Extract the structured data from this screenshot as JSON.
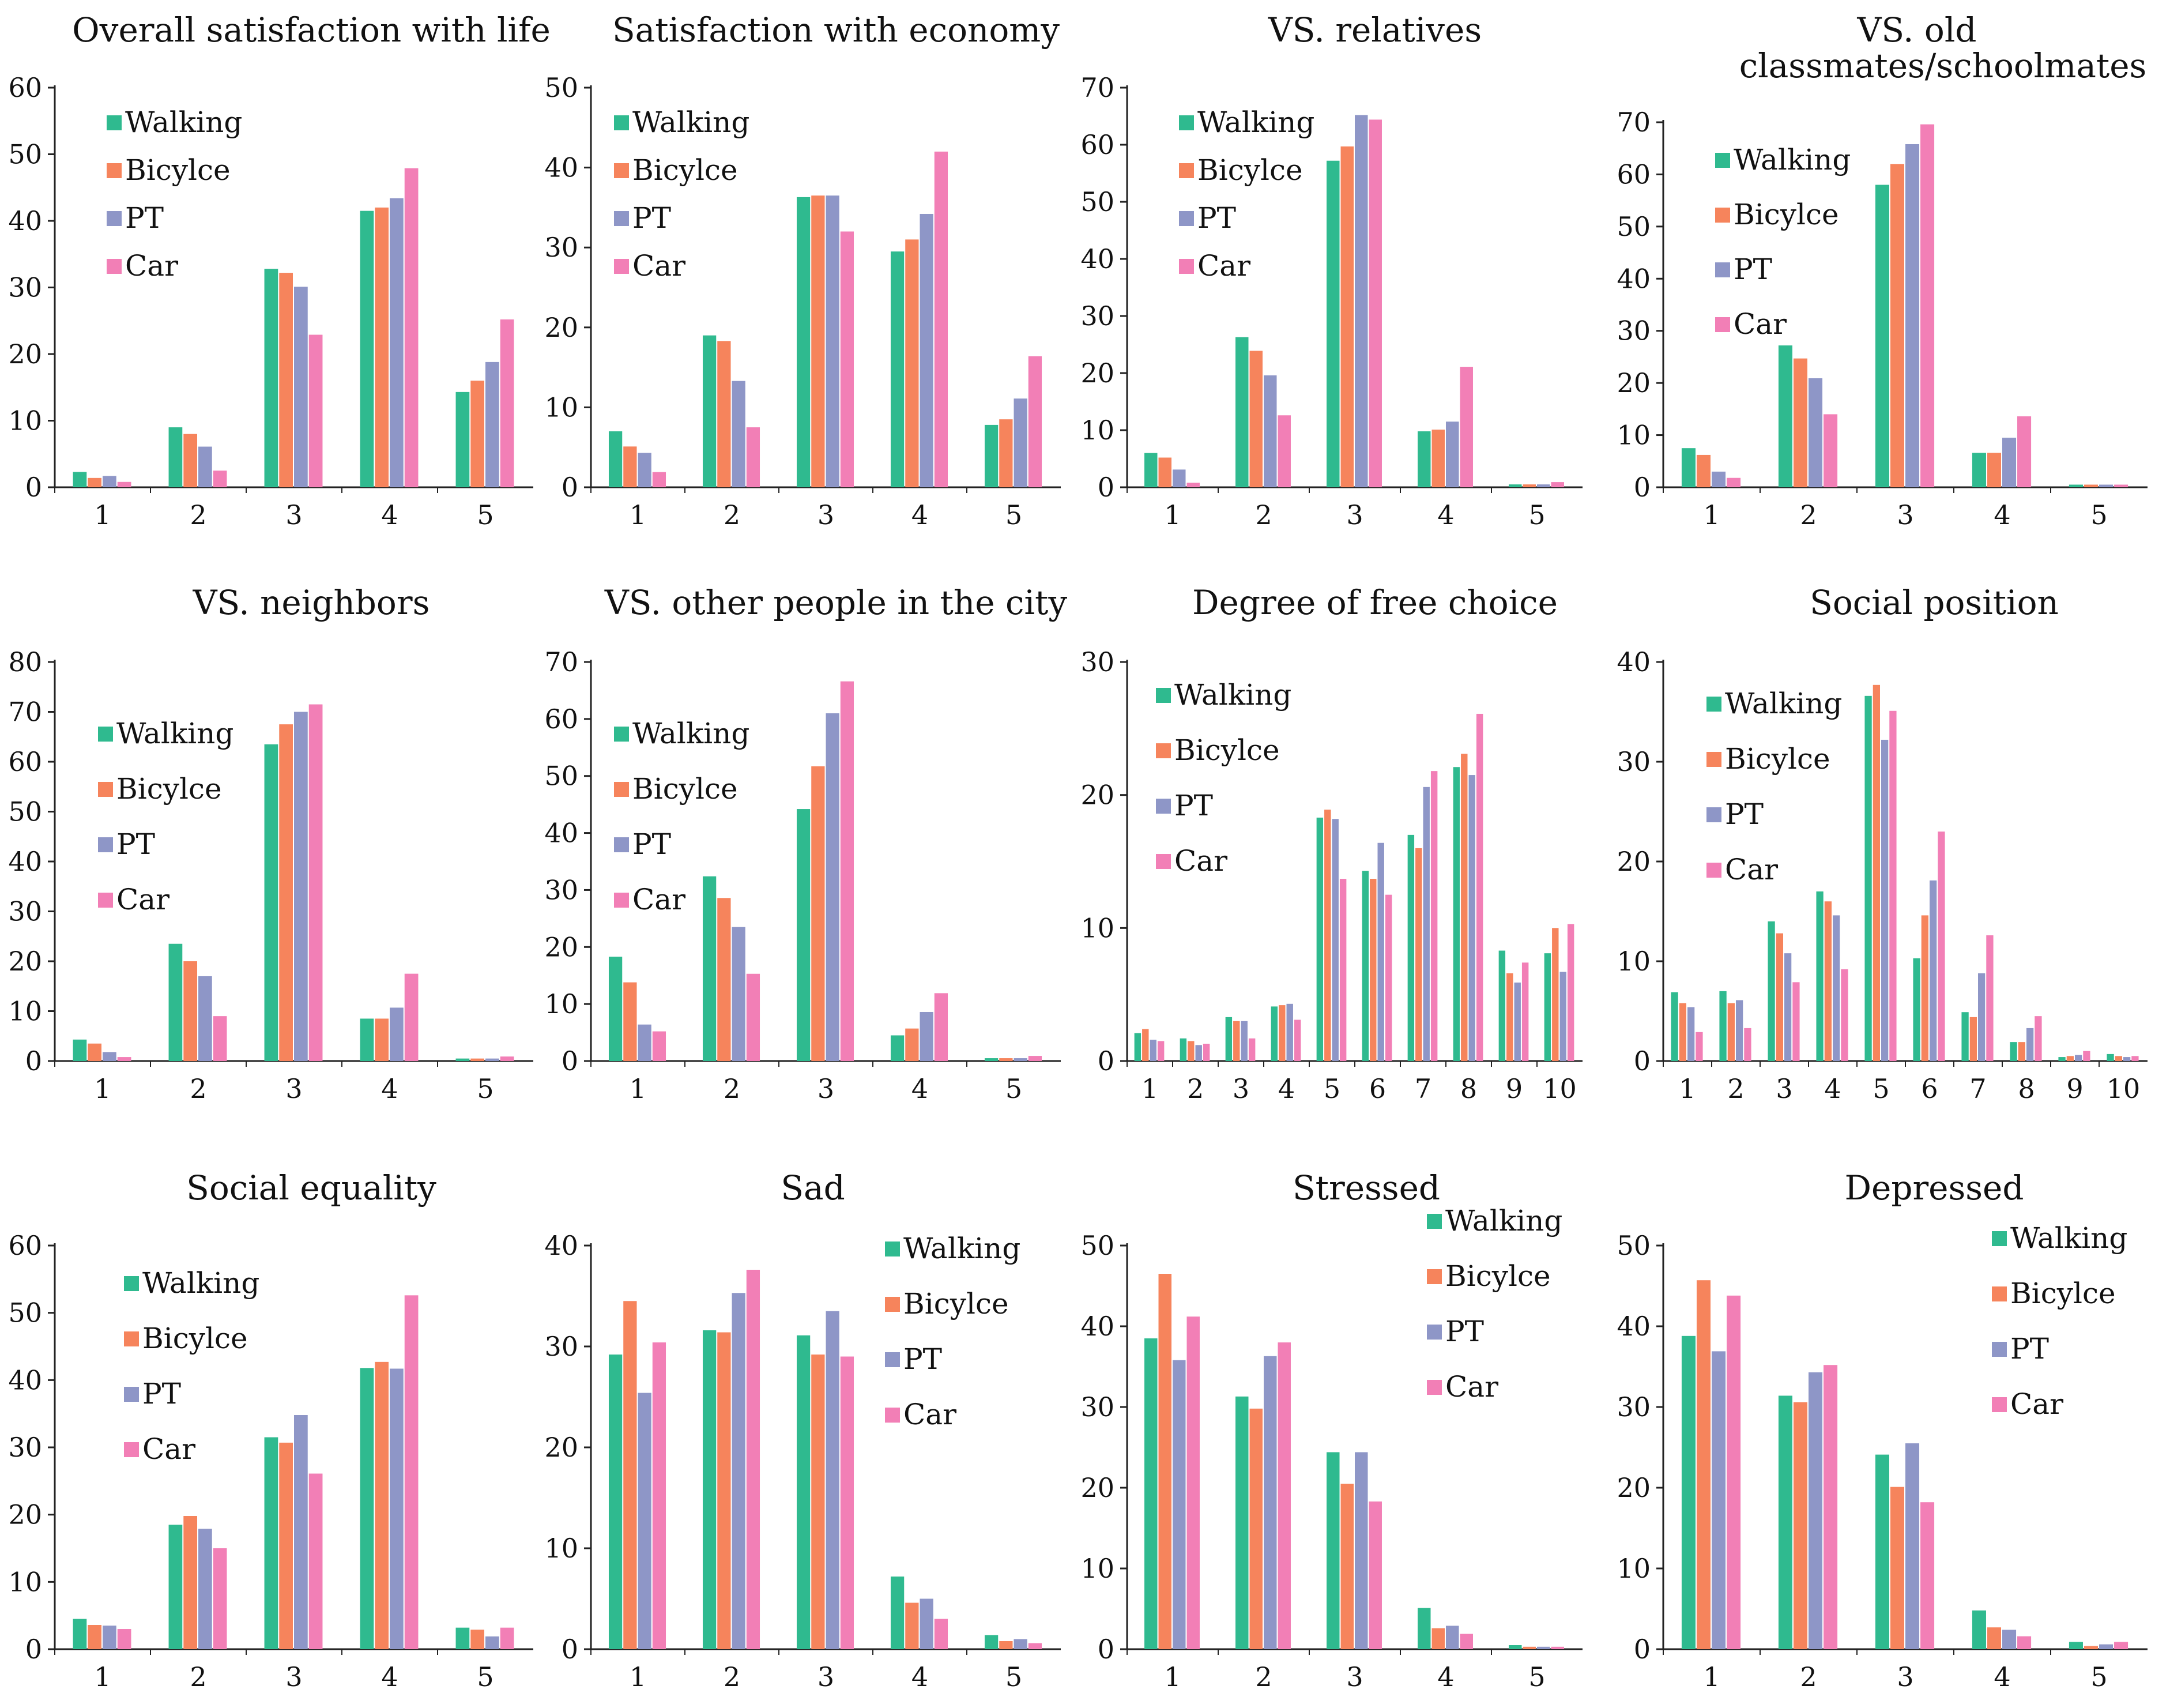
{
  "series_meta": [
    {
      "name": "Walking",
      "color": "#2fba8f"
    },
    {
      "name": "Bicylce",
      "color": "#f6845c"
    },
    {
      "name": "PT",
      "color": "#8e96c7"
    },
    {
      "name": "Car",
      "color": "#f27fb6"
    }
  ],
  "chart_data": [
    {
      "type": "bar",
      "title": "Overall satisfaction with life",
      "categories": [
        "1",
        "2",
        "3",
        "4",
        "5"
      ],
      "ylim": [
        0,
        60
      ],
      "yticks": [
        0,
        10,
        20,
        30,
        40,
        50,
        60
      ],
      "legend": "top-left",
      "series": [
        {
          "name": "Walking",
          "values": [
            2.3,
            9.0,
            32.8,
            41.5,
            14.3
          ]
        },
        {
          "name": "Bicycle",
          "values": [
            1.4,
            8.0,
            32.2,
            42.0,
            16.0
          ]
        },
        {
          "name": "PT",
          "values": [
            1.7,
            6.1,
            30.1,
            43.4,
            18.8
          ]
        },
        {
          "name": "Car",
          "values": [
            0.8,
            2.5,
            22.9,
            47.9,
            25.2
          ]
        }
      ]
    },
    {
      "type": "bar",
      "title": "Satisfaction with economy",
      "categories": [
        "1",
        "2",
        "3",
        "4",
        "5"
      ],
      "ylim": [
        0,
        50
      ],
      "yticks": [
        0,
        10,
        20,
        30,
        40,
        50
      ],
      "legend": "top-left",
      "series": [
        {
          "name": "Walking",
          "values": [
            7.0,
            19.0,
            36.3,
            29.5,
            7.8
          ]
        },
        {
          "name": "Bicycle",
          "values": [
            5.1,
            18.3,
            36.5,
            31.0,
            8.5
          ]
        },
        {
          "name": "PT",
          "values": [
            4.3,
            13.3,
            36.5,
            34.2,
            11.1
          ]
        },
        {
          "name": "Car",
          "values": [
            1.9,
            7.5,
            32.0,
            42.0,
            16.4
          ]
        }
      ]
    },
    {
      "type": "bar",
      "title": "VS. relatives",
      "categories": [
        "1",
        "2",
        "3",
        "4",
        "5"
      ],
      "ylim": [
        0,
        70
      ],
      "yticks": [
        0,
        10,
        20,
        30,
        40,
        50,
        60,
        70
      ],
      "legend": "top-left",
      "series": [
        {
          "name": "Walking",
          "values": [
            6.0,
            26.3,
            57.2,
            9.8,
            0.5
          ]
        },
        {
          "name": "Bicycle",
          "values": [
            5.2,
            23.9,
            59.7,
            10.1,
            0.5
          ]
        },
        {
          "name": "PT",
          "values": [
            3.1,
            19.6,
            65.2,
            11.5,
            0.5
          ]
        },
        {
          "name": "Car",
          "values": [
            0.8,
            12.6,
            64.4,
            21.1,
            0.9
          ]
        }
      ]
    },
    {
      "type": "bar",
      "title": "VS. old classmates/schoolmates",
      "title_lines": [
        "VS. old",
        "classmates/schoolmates"
      ],
      "categories": [
        "1",
        "2",
        "3",
        "4",
        "5"
      ],
      "ylim": [
        0,
        70
      ],
      "yticks": [
        0,
        10,
        20,
        30,
        40,
        50,
        60,
        70
      ],
      "legend": "top-left",
      "series": [
        {
          "name": "Walking",
          "values": [
            7.5,
            27.2,
            58.0,
            6.6,
            0.5
          ]
        },
        {
          "name": "Bicycle",
          "values": [
            6.2,
            24.7,
            62.0,
            6.6,
            0.5
          ]
        },
        {
          "name": "PT",
          "values": [
            3.0,
            20.9,
            65.8,
            9.5,
            0.5
          ]
        },
        {
          "name": "Car",
          "values": [
            1.8,
            14.0,
            69.6,
            13.6,
            0.5
          ]
        }
      ]
    },
    {
      "type": "bar",
      "title": "VS. neighbors",
      "categories": [
        "1",
        "2",
        "3",
        "4",
        "5"
      ],
      "ylim": [
        0,
        80
      ],
      "yticks": [
        0,
        10,
        20,
        30,
        40,
        50,
        60,
        70,
        80
      ],
      "legend": "left",
      "series": [
        {
          "name": "Walking",
          "values": [
            4.3,
            23.5,
            63.5,
            8.5,
            0.5
          ]
        },
        {
          "name": "Bicycle",
          "values": [
            3.5,
            20.0,
            67.5,
            8.5,
            0.5
          ]
        },
        {
          "name": "PT",
          "values": [
            1.8,
            17.0,
            70.0,
            10.7,
            0.5
          ]
        },
        {
          "name": "Car",
          "values": [
            0.8,
            9.0,
            71.5,
            17.5,
            0.9
          ]
        }
      ]
    },
    {
      "type": "bar",
      "title": "VS. other people in the city",
      "categories": [
        "1",
        "2",
        "3",
        "4",
        "5"
      ],
      "ylim": [
        0,
        70
      ],
      "yticks": [
        0,
        10,
        20,
        30,
        40,
        50,
        60,
        70
      ],
      "legend": "left",
      "series": [
        {
          "name": "Walking",
          "values": [
            18.3,
            32.4,
            44.2,
            4.5,
            0.5
          ]
        },
        {
          "name": "Bicycle",
          "values": [
            13.8,
            28.6,
            51.7,
            5.7,
            0.5
          ]
        },
        {
          "name": "PT",
          "values": [
            6.4,
            23.5,
            61.0,
            8.6,
            0.5
          ]
        },
        {
          "name": "Car",
          "values": [
            5.2,
            15.3,
            66.6,
            11.9,
            0.9
          ]
        }
      ]
    },
    {
      "type": "bar",
      "title": "Degree of free choice",
      "categories": [
        "1",
        "2",
        "3",
        "4",
        "5",
        "6",
        "7",
        "8",
        "9",
        "10"
      ],
      "ylim": [
        0,
        30
      ],
      "yticks": [
        0,
        10,
        20,
        30
      ],
      "legend": "top-left",
      "series": [
        {
          "name": "Walking",
          "values": [
            2.1,
            1.7,
            3.3,
            4.1,
            18.3,
            14.3,
            17.0,
            22.1,
            8.3,
            8.1
          ]
        },
        {
          "name": "Bicycle",
          "values": [
            2.4,
            1.5,
            3.0,
            4.2,
            18.9,
            13.7,
            16.0,
            23.1,
            6.6,
            10.0
          ]
        },
        {
          "name": "PT",
          "values": [
            1.6,
            1.2,
            3.0,
            4.3,
            18.2,
            16.4,
            20.6,
            21.5,
            5.9,
            6.7
          ]
        },
        {
          "name": "Car",
          "values": [
            1.5,
            1.3,
            1.7,
            3.1,
            13.7,
            12.5,
            21.8,
            26.1,
            7.4,
            10.3
          ]
        }
      ]
    },
    {
      "type": "bar",
      "title": "Social position",
      "categories": [
        "1",
        "2",
        "3",
        "4",
        "5",
        "6",
        "7",
        "8",
        "9",
        "10"
      ],
      "ylim": [
        0,
        40
      ],
      "yticks": [
        0,
        10,
        20,
        30,
        40
      ],
      "legend": "top-left",
      "series": [
        {
          "name": "Walking",
          "values": [
            6.9,
            7.0,
            14.0,
            17.0,
            36.6,
            10.3,
            4.9,
            1.9,
            0.4,
            0.7
          ]
        },
        {
          "name": "Bicycle",
          "values": [
            5.8,
            5.8,
            12.8,
            16.0,
            37.7,
            14.6,
            4.4,
            1.9,
            0.5,
            0.5
          ]
        },
        {
          "name": "PT",
          "values": [
            5.4,
            6.1,
            10.8,
            14.6,
            32.2,
            18.1,
            8.8,
            3.3,
            0.6,
            0.4
          ]
        },
        {
          "name": "Car",
          "values": [
            2.9,
            3.3,
            7.9,
            9.2,
            35.1,
            23.0,
            12.6,
            4.5,
            1.0,
            0.5
          ]
        }
      ]
    },
    {
      "type": "bar",
      "title": "Social equality",
      "categories": [
        "1",
        "2",
        "3",
        "4",
        "5"
      ],
      "ylim": [
        0,
        60
      ],
      "yticks": [
        0,
        10,
        20,
        30,
        40,
        50,
        60
      ],
      "legend": "top-left",
      "series": [
        {
          "name": "Walking",
          "values": [
            4.5,
            18.5,
            31.5,
            41.8,
            3.2
          ]
        },
        {
          "name": "Bicycle",
          "values": [
            3.6,
            19.8,
            30.7,
            42.7,
            2.9
          ]
        },
        {
          "name": "PT",
          "values": [
            3.5,
            17.9,
            34.8,
            41.7,
            1.9
          ]
        },
        {
          "name": "Car",
          "values": [
            3.0,
            15.0,
            26.1,
            52.6,
            3.2
          ]
        }
      ]
    },
    {
      "type": "bar",
      "title": "Sad",
      "categories": [
        "1",
        "2",
        "3",
        "4",
        "5"
      ],
      "ylim": [
        0,
        40
      ],
      "yticks": [
        0,
        10,
        20,
        30,
        40
      ],
      "legend": "top-right",
      "series": [
        {
          "name": "Walking",
          "values": [
            29.2,
            31.6,
            31.1,
            7.2,
            1.4
          ]
        },
        {
          "name": "Bicycle",
          "values": [
            34.5,
            31.4,
            29.2,
            4.6,
            0.8
          ]
        },
        {
          "name": "PT",
          "values": [
            25.4,
            35.3,
            33.5,
            5.0,
            1.0
          ]
        },
        {
          "name": "Car",
          "values": [
            30.4,
            37.6,
            29.0,
            3.0,
            0.6
          ]
        }
      ]
    },
    {
      "type": "bar",
      "title": "Stressed",
      "categories": [
        "1",
        "2",
        "3",
        "4",
        "5"
      ],
      "ylim": [
        0,
        50
      ],
      "yticks": [
        0,
        10,
        20,
        30,
        40,
        50
      ],
      "legend": "top-right",
      "series": [
        {
          "name": "Walking",
          "values": [
            38.5,
            31.3,
            24.4,
            5.1,
            0.5
          ]
        },
        {
          "name": "Bicycle",
          "values": [
            46.5,
            29.8,
            20.5,
            2.6,
            0.3
          ]
        },
        {
          "name": "PT",
          "values": [
            35.8,
            36.3,
            24.4,
            2.9,
            0.3
          ]
        },
        {
          "name": "Car",
          "values": [
            41.2,
            38.0,
            18.3,
            1.9,
            0.3
          ]
        }
      ]
    },
    {
      "type": "bar",
      "title": "Depressed",
      "categories": [
        "1",
        "2",
        "3",
        "4",
        "5"
      ],
      "ylim": [
        0,
        50
      ],
      "yticks": [
        0,
        10,
        20,
        30,
        40,
        50
      ],
      "legend": "top-right",
      "series": [
        {
          "name": "Walking",
          "values": [
            38.8,
            31.4,
            24.1,
            4.8,
            0.9
          ]
        },
        {
          "name": "Bicycle",
          "values": [
            45.7,
            30.6,
            20.1,
            2.7,
            0.4
          ]
        },
        {
          "name": "PT",
          "values": [
            36.9,
            34.3,
            25.5,
            2.4,
            0.6
          ]
        },
        {
          "name": "Car",
          "values": [
            43.8,
            35.2,
            18.2,
            1.6,
            0.9
          ]
        }
      ]
    }
  ]
}
